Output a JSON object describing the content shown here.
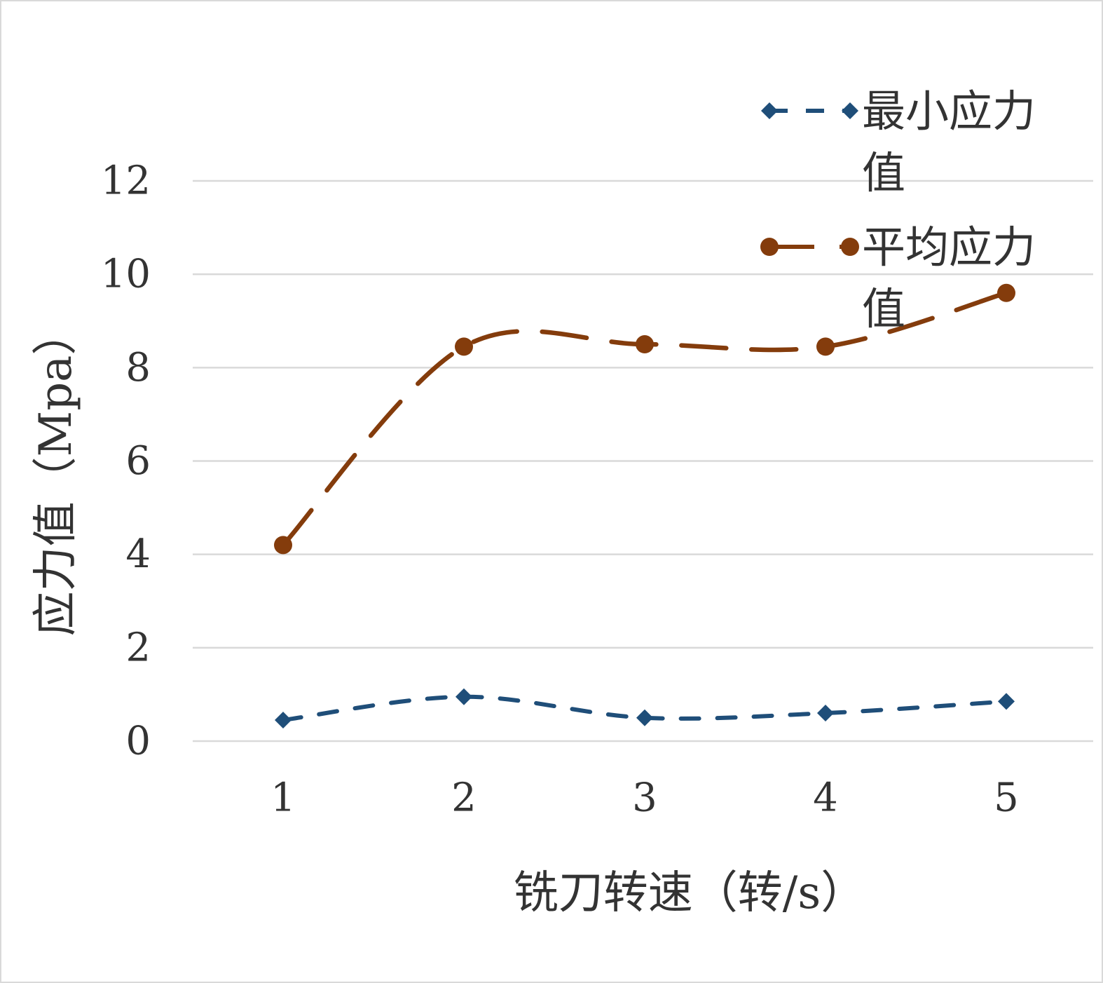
{
  "chart_data": {
    "type": "line",
    "x": [
      1,
      2,
      3,
      4,
      5
    ],
    "xlabel": "铣刀转速（转/s）",
    "ylabel": "应力值（Mpa）",
    "ylim": [
      0,
      12
    ],
    "yticks": [
      0,
      2,
      4,
      6,
      8,
      10,
      12
    ],
    "grid": true,
    "legend_position": "top-right",
    "series": [
      {
        "name": "最小应力值",
        "name_lines": [
          "最小应力",
          "值"
        ],
        "values": [
          0.45,
          0.95,
          0.5,
          0.6,
          0.85
        ],
        "color": "#1f4e79",
        "marker": "diamond",
        "line_style": "dashed"
      },
      {
        "name": "平均应力值",
        "name_lines": [
          "平均应力",
          "值"
        ],
        "values": [
          4.2,
          8.45,
          8.5,
          8.45,
          9.6
        ],
        "color": "#843c0c",
        "marker": "circle",
        "line_style": "long-dash"
      }
    ]
  }
}
